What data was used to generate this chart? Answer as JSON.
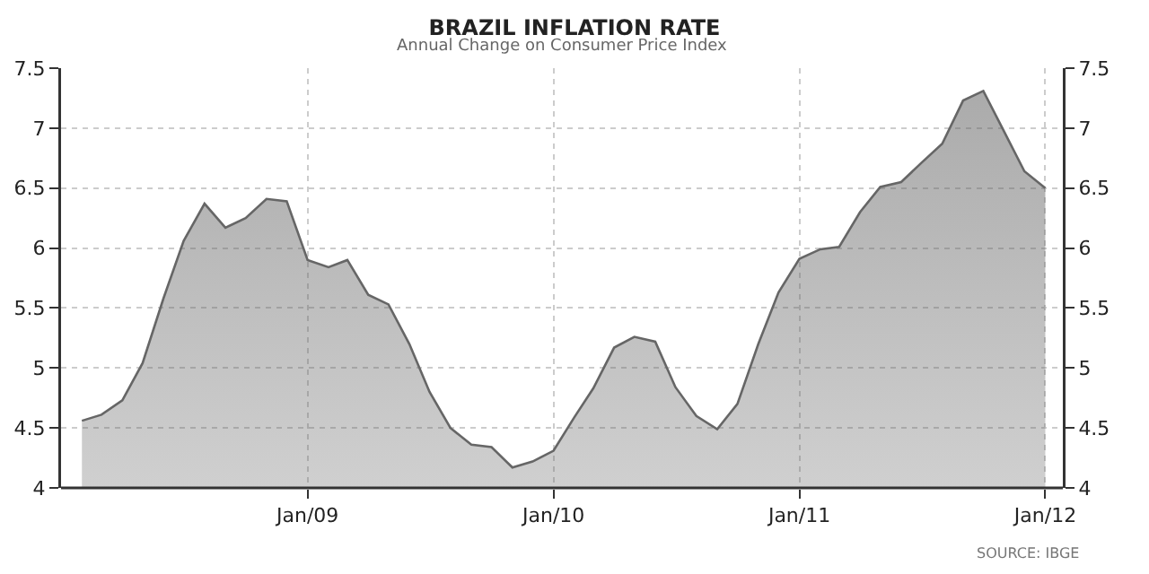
{
  "chart_data": {
    "type": "area",
    "title": "BRAZIL INFLATION RATE",
    "subtitle": "Annual Change on Consumer Price Index",
    "x": [
      "2008-02",
      "2008-03",
      "2008-04",
      "2008-05",
      "2008-06",
      "2008-07",
      "2008-08",
      "2008-09",
      "2008-10",
      "2008-11",
      "2008-12",
      "2009-01",
      "2009-02",
      "2009-03",
      "2009-04",
      "2009-05",
      "2009-06",
      "2009-07",
      "2009-08",
      "2009-09",
      "2009-10",
      "2009-11",
      "2009-12",
      "2010-01",
      "2010-02",
      "2010-03",
      "2010-04",
      "2010-05",
      "2010-06",
      "2010-07",
      "2010-08",
      "2010-09",
      "2010-10",
      "2010-11",
      "2010-12",
      "2011-01",
      "2011-02",
      "2011-03",
      "2011-04",
      "2011-05",
      "2011-06",
      "2011-07",
      "2011-08",
      "2011-09",
      "2011-10",
      "2011-11",
      "2011-12",
      "2012-01"
    ],
    "series": [
      {
        "color": "#666666",
        "values": [
          4.56,
          4.61,
          4.73,
          5.04,
          5.58,
          6.06,
          6.37,
          6.17,
          6.25,
          6.41,
          6.39,
          5.9,
          5.84,
          5.9,
          5.61,
          5.53,
          5.2,
          4.8,
          4.5,
          4.36,
          4.34,
          4.17,
          4.22,
          4.31,
          4.59,
          4.83,
          5.17,
          5.26,
          5.22,
          4.84,
          4.6,
          4.49,
          4.7,
          5.2,
          5.63,
          5.91,
          5.99,
          6.01,
          6.3,
          6.51,
          6.55,
          6.71,
          6.87,
          7.23,
          7.31,
          6.97,
          6.64,
          6.5
        ]
      }
    ],
    "xlim": [
      "2008-01-01",
      "2012-01-27"
    ],
    "xticks": [
      {
        "value": "2009-01-01",
        "label": "Jan/09"
      },
      {
        "value": "2010-01-01",
        "label": "Jan/10"
      },
      {
        "value": "2011-01-01",
        "label": "Jan/11"
      },
      {
        "value": "2012-01-01",
        "label": "Jan/12"
      }
    ],
    "ylim": [
      4,
      7.5
    ],
    "yticks": [
      4,
      4.5,
      5,
      5.5,
      6,
      6.5,
      7,
      7.5
    ],
    "y2lim": [
      4,
      7.5
    ],
    "y2ticks": [
      4,
      4.5,
      5,
      5.5,
      6,
      6.5,
      7,
      7.5
    ],
    "annotations": [
      "SOURCE: IBGE"
    ],
    "grid": true,
    "marker": "none",
    "line_style": "solid"
  }
}
